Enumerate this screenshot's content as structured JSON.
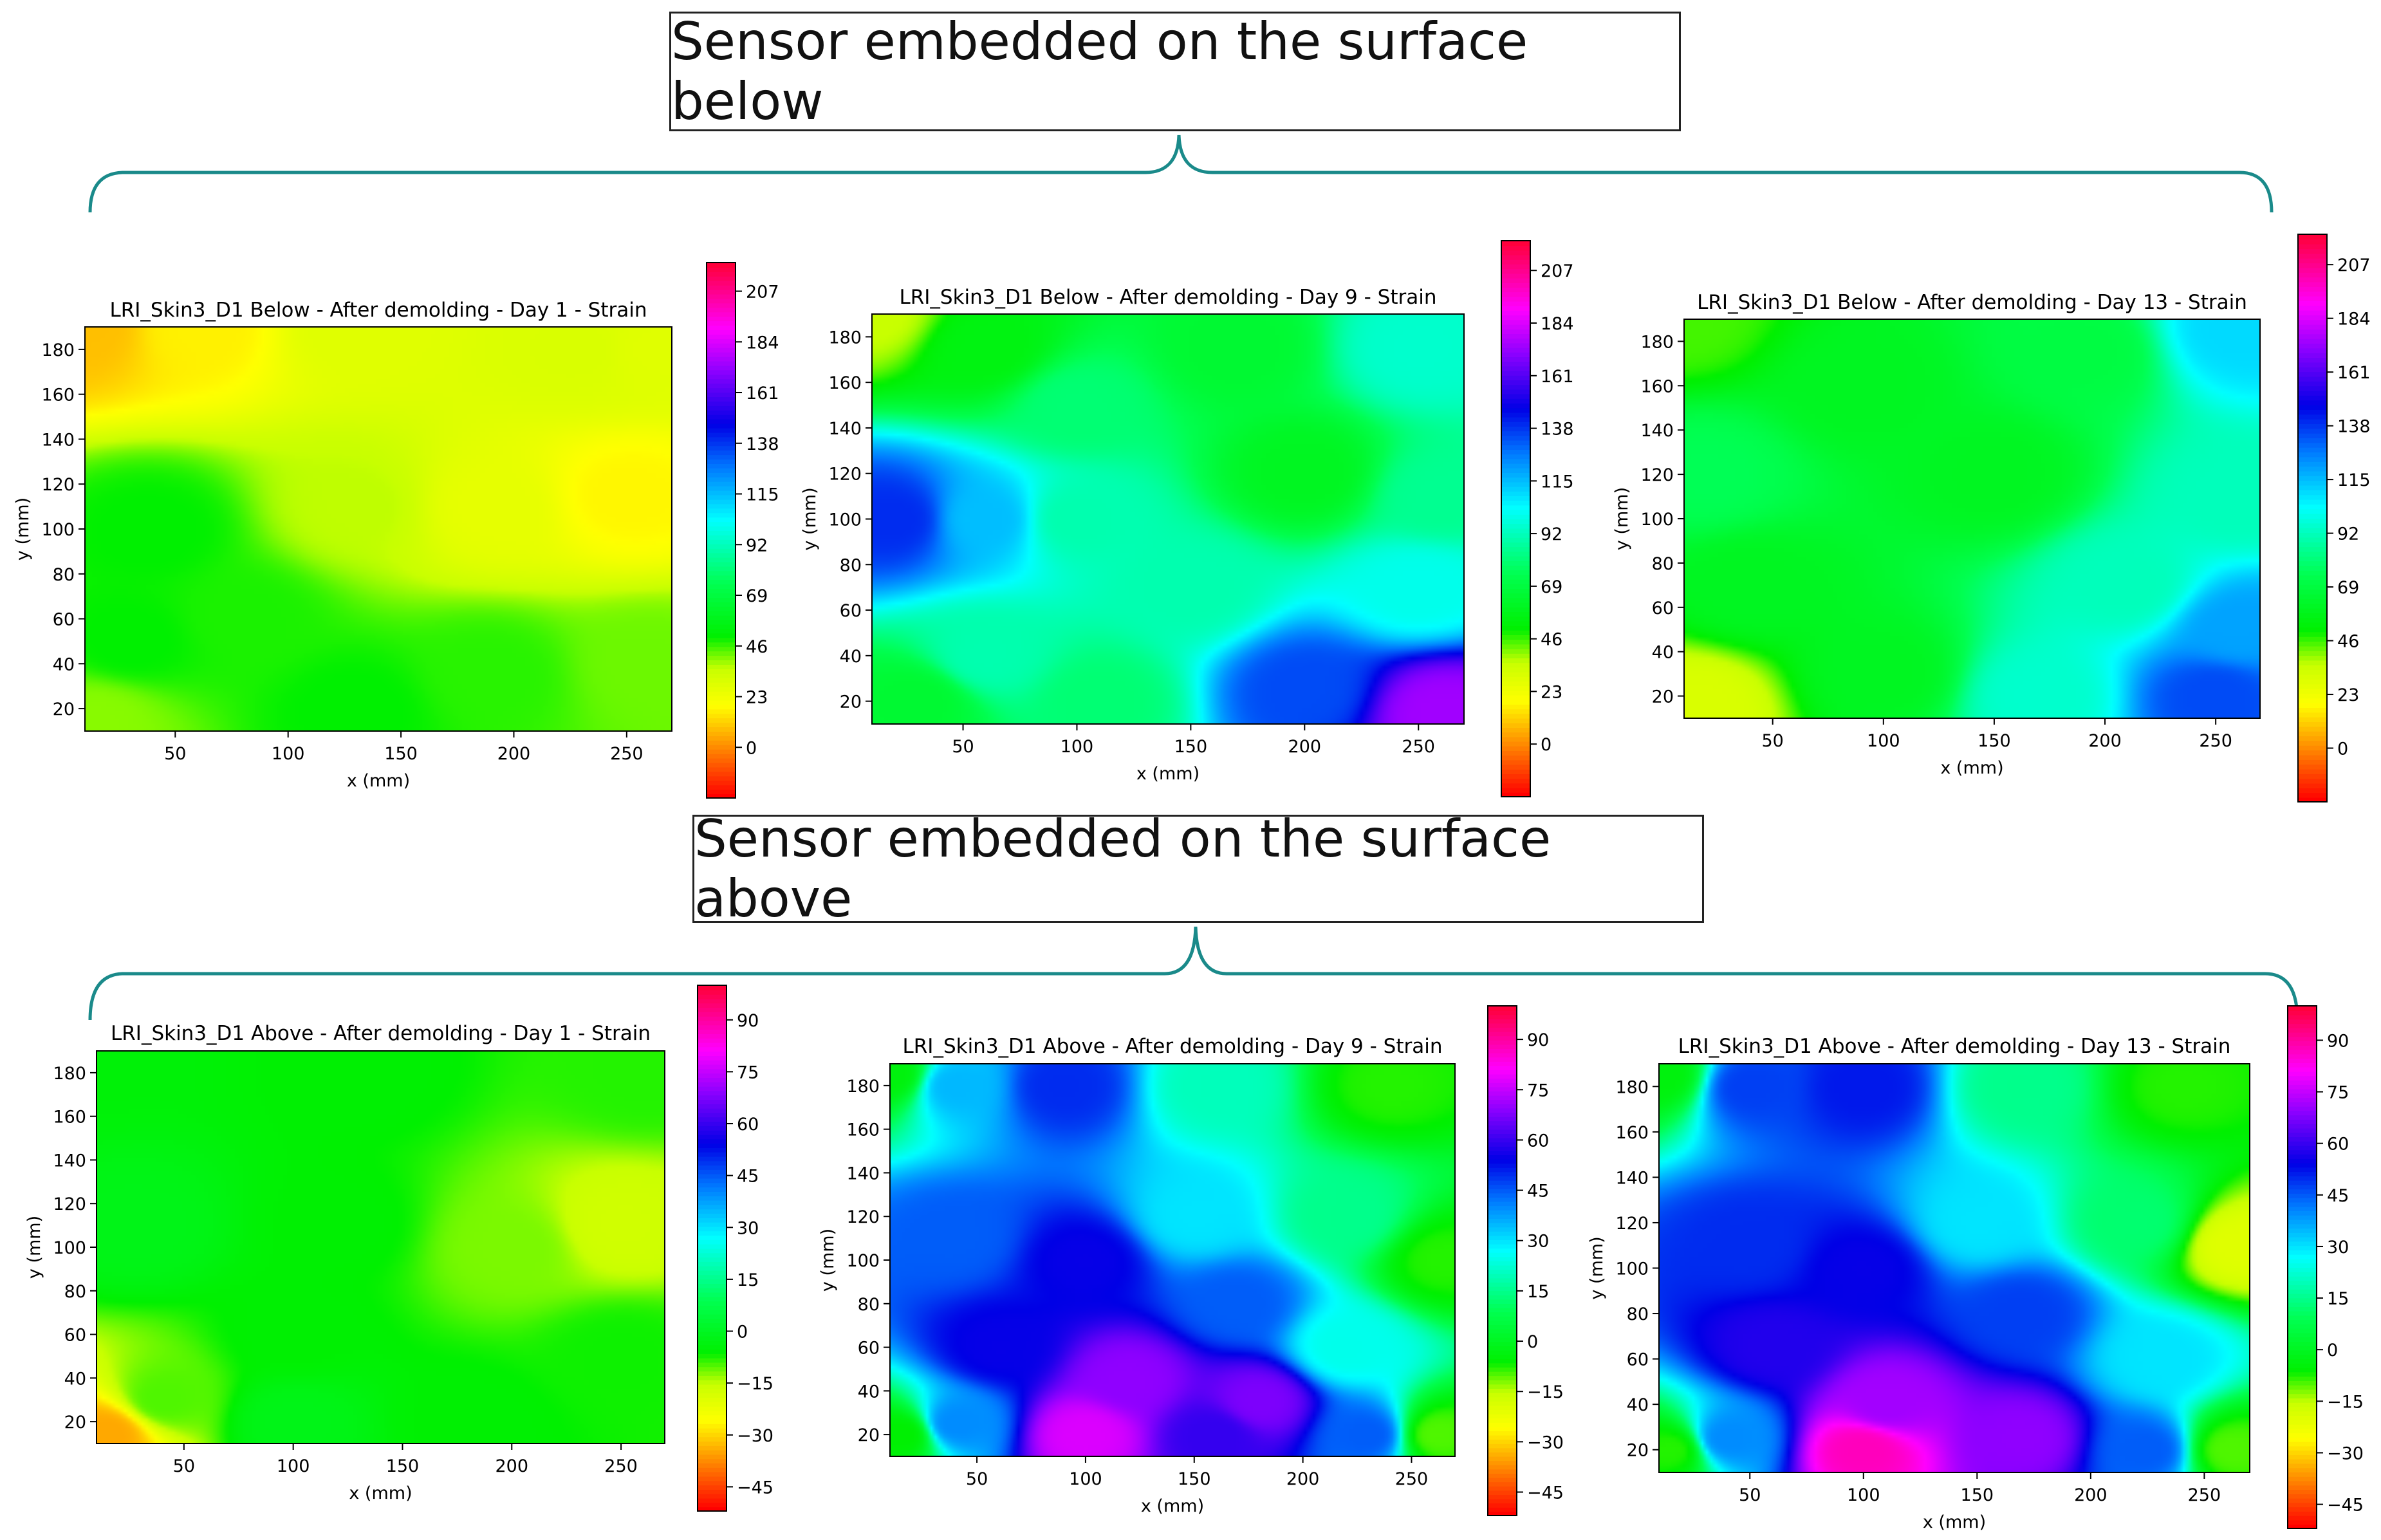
{
  "sections": [
    {
      "label": "Sensor embedded on the surface below"
    },
    {
      "label": "Sensor embedded on the surface above"
    }
  ],
  "chart_data": [
    {
      "type": "heatmap",
      "title": "LRI_Skin3_D1 Below - After demolding - Day 1 - Strain",
      "xlabel": "x (mm)",
      "ylabel": "y (mm)",
      "xlim": [
        10,
        270
      ],
      "ylim": [
        10,
        190
      ],
      "xticks": [
        50,
        100,
        150,
        200,
        250
      ],
      "yticks": [
        20,
        40,
        60,
        80,
        100,
        120,
        140,
        160,
        180
      ],
      "colorbar": {
        "min": -23,
        "max": 220,
        "ticks": [
          0,
          23,
          46,
          69,
          92,
          115,
          138,
          161,
          184,
          207
        ]
      },
      "field_points": [
        {
          "x": 10,
          "y": 190,
          "v": 8
        },
        {
          "x": 60,
          "y": 190,
          "v": 16
        },
        {
          "x": 130,
          "y": 190,
          "v": 28
        },
        {
          "x": 230,
          "y": 180,
          "v": 30
        },
        {
          "x": 250,
          "y": 115,
          "v": 17
        },
        {
          "x": 190,
          "y": 110,
          "v": 26
        },
        {
          "x": 130,
          "y": 110,
          "v": 36
        },
        {
          "x": 40,
          "y": 100,
          "v": 50
        },
        {
          "x": 80,
          "y": 60,
          "v": 48
        },
        {
          "x": 30,
          "y": 50,
          "v": 50
        },
        {
          "x": 190,
          "y": 35,
          "v": 47
        },
        {
          "x": 260,
          "y": 40,
          "v": 42
        },
        {
          "x": 15,
          "y": 15,
          "v": 40
        },
        {
          "x": 130,
          "y": 20,
          "v": 50
        },
        {
          "x": 260,
          "y": 180,
          "v": 28
        }
      ]
    },
    {
      "type": "heatmap",
      "title": "LRI_Skin3_D1 Below - After demolding - Day 9 - Strain",
      "xlabel": "x (mm)",
      "ylabel": "y (mm)",
      "xlim": [
        10,
        270
      ],
      "ylim": [
        10,
        190
      ],
      "xticks": [
        50,
        100,
        150,
        200,
        250
      ],
      "yticks": [
        20,
        40,
        60,
        80,
        100,
        120,
        140,
        160,
        180
      ],
      "colorbar": {
        "min": -23,
        "max": 220,
        "ticks": [
          0,
          23,
          46,
          69,
          92,
          115,
          138,
          161,
          184,
          207
        ]
      },
      "field_points": [
        {
          "x": 10,
          "y": 190,
          "v": 35
        },
        {
          "x": 60,
          "y": 175,
          "v": 55
        },
        {
          "x": 20,
          "y": 100,
          "v": 140
        },
        {
          "x": 60,
          "y": 100,
          "v": 115
        },
        {
          "x": 100,
          "y": 100,
          "v": 90
        },
        {
          "x": 100,
          "y": 150,
          "v": 80
        },
        {
          "x": 200,
          "y": 120,
          "v": 60
        },
        {
          "x": 170,
          "y": 175,
          "v": 65
        },
        {
          "x": 250,
          "y": 175,
          "v": 95
        },
        {
          "x": 260,
          "y": 110,
          "v": 85
        },
        {
          "x": 150,
          "y": 70,
          "v": 90
        },
        {
          "x": 250,
          "y": 70,
          "v": 100
        },
        {
          "x": 200,
          "y": 25,
          "v": 135
        },
        {
          "x": 260,
          "y": 15,
          "v": 175
        },
        {
          "x": 110,
          "y": 20,
          "v": 80
        },
        {
          "x": 30,
          "y": 20,
          "v": 65
        },
        {
          "x": 60,
          "y": 40,
          "v": 90
        }
      ]
    },
    {
      "type": "heatmap",
      "title": "LRI_Skin3_D1 Below - After demolding - Day 13 - Strain",
      "xlabel": "x (mm)",
      "ylabel": "y (mm)",
      "xlim": [
        10,
        270
      ],
      "ylim": [
        10,
        190
      ],
      "xticks": [
        50,
        100,
        150,
        200,
        250
      ],
      "yticks": [
        20,
        40,
        60,
        80,
        100,
        120,
        140,
        160,
        180
      ],
      "colorbar": {
        "min": -23,
        "max": 220,
        "ticks": [
          0,
          23,
          46,
          69,
          92,
          115,
          138,
          161,
          184,
          207
        ]
      },
      "field_points": [
        {
          "x": 10,
          "y": 190,
          "v": 45
        },
        {
          "x": 90,
          "y": 160,
          "v": 60
        },
        {
          "x": 150,
          "y": 120,
          "v": 60
        },
        {
          "x": 190,
          "y": 175,
          "v": 70
        },
        {
          "x": 260,
          "y": 185,
          "v": 110
        },
        {
          "x": 260,
          "y": 110,
          "v": 92
        },
        {
          "x": 210,
          "y": 70,
          "v": 92
        },
        {
          "x": 260,
          "y": 50,
          "v": 120
        },
        {
          "x": 250,
          "y": 20,
          "v": 135
        },
        {
          "x": 170,
          "y": 20,
          "v": 95
        },
        {
          "x": 100,
          "y": 30,
          "v": 60
        },
        {
          "x": 15,
          "y": 15,
          "v": 30
        },
        {
          "x": 40,
          "y": 70,
          "v": 60
        },
        {
          "x": 20,
          "y": 120,
          "v": 75
        }
      ]
    },
    {
      "type": "heatmap",
      "title": "LRI_Skin3_D1 Above - After demolding - Day 1 - Strain",
      "xlabel": "x (mm)",
      "ylabel": "y (mm)",
      "xlim": [
        10,
        270
      ],
      "ylim": [
        10,
        190
      ],
      "xticks": [
        50,
        100,
        150,
        200,
        250
      ],
      "yticks": [
        20,
        40,
        60,
        80,
        100,
        120,
        140,
        160,
        180
      ],
      "colorbar": {
        "min": -52,
        "max": 100,
        "ticks": [
          -45,
          -30,
          -15,
          0,
          15,
          30,
          45,
          60,
          75,
          90
        ]
      },
      "field_points": [
        {
          "x": 10,
          "y": 190,
          "v": -5
        },
        {
          "x": 130,
          "y": 180,
          "v": -6
        },
        {
          "x": 260,
          "y": 180,
          "v": -8
        },
        {
          "x": 30,
          "y": 110,
          "v": -2
        },
        {
          "x": 120,
          "y": 110,
          "v": -6
        },
        {
          "x": 250,
          "y": 110,
          "v": -17
        },
        {
          "x": 200,
          "y": 100,
          "v": -12
        },
        {
          "x": 100,
          "y": 60,
          "v": -6
        },
        {
          "x": 250,
          "y": 50,
          "v": -7
        },
        {
          "x": 15,
          "y": 15,
          "v": -35
        },
        {
          "x": 40,
          "y": 30,
          "v": -10
        },
        {
          "x": 100,
          "y": 20,
          "v": -2
        },
        {
          "x": 180,
          "y": 20,
          "v": -6
        }
      ]
    },
    {
      "type": "heatmap",
      "title": "LRI_Skin3_D1 Above - After demolding - Day 9 - Strain",
      "xlabel": "x (mm)",
      "ylabel": "y (mm)",
      "xlim": [
        10,
        270
      ],
      "ylim": [
        10,
        190
      ],
      "xticks": [
        50,
        100,
        150,
        200,
        250
      ],
      "yticks": [
        20,
        40,
        60,
        80,
        100,
        120,
        140,
        160,
        180
      ],
      "colorbar": {
        "min": -52,
        "max": 100,
        "ticks": [
          -45,
          -30,
          -15,
          0,
          15,
          30,
          45,
          60,
          75,
          90
        ]
      },
      "field_points": [
        {
          "x": 10,
          "y": 185,
          "v": -4
        },
        {
          "x": 40,
          "y": 180,
          "v": 35
        },
        {
          "x": 90,
          "y": 180,
          "v": 50
        },
        {
          "x": 160,
          "y": 180,
          "v": 20
        },
        {
          "x": 240,
          "y": 180,
          "v": -8
        },
        {
          "x": 150,
          "y": 120,
          "v": 30
        },
        {
          "x": 220,
          "y": 120,
          "v": 15
        },
        {
          "x": 265,
          "y": 100,
          "v": -8
        },
        {
          "x": 40,
          "y": 110,
          "v": 45
        },
        {
          "x": 100,
          "y": 100,
          "v": 55
        },
        {
          "x": 170,
          "y": 80,
          "v": 45
        },
        {
          "x": 220,
          "y": 60,
          "v": 25
        },
        {
          "x": 120,
          "y": 45,
          "v": 70
        },
        {
          "x": 180,
          "y": 35,
          "v": 68
        },
        {
          "x": 100,
          "y": 20,
          "v": 78
        },
        {
          "x": 160,
          "y": 20,
          "v": 60
        },
        {
          "x": 230,
          "y": 20,
          "v": 45
        },
        {
          "x": 262,
          "y": 20,
          "v": -10
        },
        {
          "x": 15,
          "y": 20,
          "v": -6
        },
        {
          "x": 40,
          "y": 25,
          "v": 40
        },
        {
          "x": 60,
          "y": 60,
          "v": 55
        }
      ]
    },
    {
      "type": "heatmap",
      "title": "LRI_Skin3_D1 Above - After demolding - Day 13 - Strain",
      "xlabel": "x (mm)",
      "ylabel": "y (mm)",
      "xlim": [
        10,
        270
      ],
      "ylim": [
        10,
        190
      ],
      "xticks": [
        50,
        100,
        150,
        200,
        250
      ],
      "yticks": [
        20,
        40,
        60,
        80,
        100,
        120,
        140,
        160,
        180
      ],
      "colorbar": {
        "min": -52,
        "max": 100,
        "ticks": [
          -45,
          -30,
          -15,
          0,
          15,
          30,
          45,
          60,
          75,
          90
        ]
      },
      "field_points": [
        {
          "x": 10,
          "y": 185,
          "v": -4
        },
        {
          "x": 50,
          "y": 180,
          "v": 48
        },
        {
          "x": 100,
          "y": 180,
          "v": 52
        },
        {
          "x": 170,
          "y": 180,
          "v": 15
        },
        {
          "x": 240,
          "y": 180,
          "v": -8
        },
        {
          "x": 265,
          "y": 110,
          "v": -20
        },
        {
          "x": 220,
          "y": 120,
          "v": 12
        },
        {
          "x": 150,
          "y": 120,
          "v": 30
        },
        {
          "x": 50,
          "y": 110,
          "v": 50
        },
        {
          "x": 100,
          "y": 100,
          "v": 55
        },
        {
          "x": 170,
          "y": 80,
          "v": 48
        },
        {
          "x": 230,
          "y": 60,
          "v": 30
        },
        {
          "x": 110,
          "y": 40,
          "v": 72
        },
        {
          "x": 100,
          "y": 20,
          "v": 88
        },
        {
          "x": 170,
          "y": 25,
          "v": 70
        },
        {
          "x": 225,
          "y": 20,
          "v": 45
        },
        {
          "x": 262,
          "y": 20,
          "v": -10
        },
        {
          "x": 15,
          "y": 20,
          "v": -8
        },
        {
          "x": 40,
          "y": 25,
          "v": 40
        },
        {
          "x": 60,
          "y": 65,
          "v": 58
        }
      ]
    }
  ]
}
